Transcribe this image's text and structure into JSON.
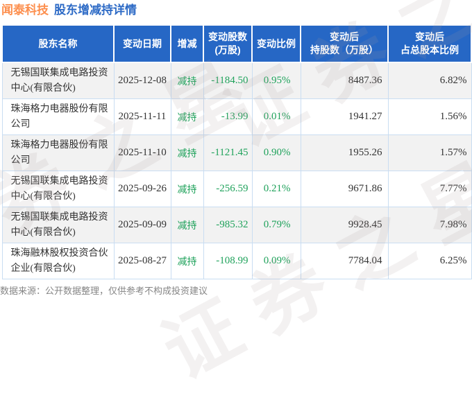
{
  "title": {
    "stock": "闻泰科技",
    "subtitle": "股东增减持详情"
  },
  "watermark": {
    "text": "证券之星"
  },
  "footer": {
    "source_note": "数据来源：公开数据整理，仅供参考不构成投资建议"
  },
  "colors": {
    "header_bg": "#2667c5",
    "title_orange": "#fd8f4e",
    "title_blue": "#2e6bc6",
    "decrease_green": "#1fa25b",
    "zebra_row_bg": "#f2f2f2",
    "cell_border": "#c9ddf2"
  },
  "chart_data": {
    "type": "table",
    "title": "闻泰科技 股东增减持详情",
    "columns": [
      {
        "line1": "股东名称"
      },
      {
        "line1": "变动日期"
      },
      {
        "line1": "增减"
      },
      {
        "line1": "变动股数",
        "line2": "(万股)"
      },
      {
        "line1": "变动比例"
      },
      {
        "line1": "变动后",
        "line2": "持股数（万股）"
      },
      {
        "line1": "变动后",
        "line2": "占总股本比例"
      }
    ],
    "rows": [
      {
        "name": "无锡国联集成电路投资中心(有限合伙)",
        "date": "2025-12-08",
        "action": "减持",
        "change_shares": "-1184.50",
        "change_ratio": "0.95%",
        "shares_after": "8487.36",
        "total_ratio": "6.82%"
      },
      {
        "name": "珠海格力电器股份有限公司",
        "date": "2025-11-11",
        "action": "减持",
        "change_shares": "-13.99",
        "change_ratio": "0.01%",
        "shares_after": "1941.27",
        "total_ratio": "1.56%"
      },
      {
        "name": "珠海格力电器股份有限公司",
        "date": "2025-11-10",
        "action": "减持",
        "change_shares": "-1121.45",
        "change_ratio": "0.90%",
        "shares_after": "1955.26",
        "total_ratio": "1.57%"
      },
      {
        "name": "无锡国联集成电路投资中心(有限合伙)",
        "date": "2025-09-26",
        "action": "减持",
        "change_shares": "-256.59",
        "change_ratio": "0.21%",
        "shares_after": "9671.86",
        "total_ratio": "7.77%"
      },
      {
        "name": "无锡国联集成电路投资中心(有限合伙)",
        "date": "2025-09-09",
        "action": "减持",
        "change_shares": "-985.32",
        "change_ratio": "0.79%",
        "shares_after": "9928.45",
        "total_ratio": "7.98%"
      },
      {
        "name": "珠海融林股权投资合伙企业(有限合伙)",
        "date": "2025-08-27",
        "action": "减持",
        "change_shares": "-108.99",
        "change_ratio": "0.09%",
        "shares_after": "7784.04",
        "total_ratio": "6.25%"
      }
    ]
  }
}
